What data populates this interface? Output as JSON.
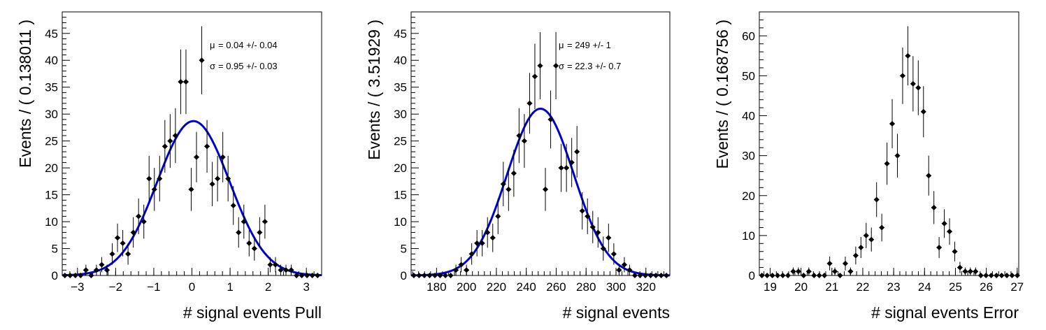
{
  "chart_data": [
    {
      "type": "scatter",
      "xlabel": "# signal events Pull",
      "ylabel": "Events / ( 0.138011 )",
      "xlim": [
        -3.4,
        3.4
      ],
      "ylim": [
        0,
        49
      ],
      "xticks": [
        "−3",
        "−2",
        "−1",
        "0",
        "1",
        "2",
        "3"
      ],
      "xtick_values": [
        -3,
        -2,
        -1,
        0,
        1,
        2,
        3
      ],
      "yticks": [
        "0",
        "5",
        "10",
        "15",
        "20",
        "25",
        "30",
        "35",
        "40",
        "45"
      ],
      "bin_width": 0.138011,
      "series": [
        {
          "x0": -3.331,
          "values": [
            0,
            0,
            0,
            0,
            1,
            0,
            1,
            2,
            1,
            4,
            7,
            6,
            4,
            8,
            11,
            10,
            18,
            16,
            18,
            24,
            25,
            26,
            36,
            36,
            16,
            22,
            40,
            24,
            17,
            18,
            22,
            18,
            13,
            8,
            10,
            6,
            5,
            8,
            10,
            2,
            2,
            1,
            1,
            1,
            0,
            0,
            0,
            0,
            0,
            0
          ]
        }
      ],
      "fit": {
        "type": "gaussian",
        "mean": 0.04,
        "sigma": 0.95,
        "amplitude": 28.7,
        "color": "#0000cc"
      },
      "stats": [
        {
          "symbol": "μ",
          "text": "=  0.04 +/- 0.04"
        },
        {
          "symbol": "σ",
          "text": "=  0.95 +/- 0.03"
        }
      ],
      "grid": false
    },
    {
      "type": "scatter",
      "xlabel": "# signal events",
      "ylabel": "Events / ( 3.51929 )",
      "xlim": [
        163,
        336
      ],
      "ylim": [
        0,
        49
      ],
      "xticks": [
        "180",
        "200",
        "220",
        "240",
        "260",
        "280",
        "300",
        "320"
      ],
      "xtick_values": [
        180,
        200,
        220,
        240,
        260,
        280,
        300,
        320
      ],
      "yticks": [
        "0",
        "5",
        "10",
        "15",
        "20",
        "25",
        "30",
        "35",
        "40",
        "45"
      ],
      "bin_width": 3.51929,
      "series": [
        {
          "x0": 164.8,
          "values": [
            0,
            0,
            0,
            0,
            0,
            0,
            0,
            0,
            1,
            2,
            1,
            4,
            6,
            6,
            8,
            7,
            11,
            17,
            16,
            19,
            26,
            25,
            32,
            37,
            39,
            16,
            29,
            39,
            20,
            20,
            21,
            23,
            12,
            11,
            9,
            8,
            5,
            7,
            4,
            1,
            2,
            1,
            0,
            0,
            0,
            0,
            0,
            0,
            0,
            0
          ]
        }
      ],
      "fit": {
        "type": "gaussian",
        "mean": 249.5,
        "sigma": 22.3,
        "amplitude": 31.0,
        "color": "#0000cc"
      },
      "stats": [
        {
          "symbol": "μ",
          "text": "=  249 +/- 1"
        },
        {
          "symbol": "σ",
          "text": "=  22.3 +/- 0.7"
        }
      ],
      "grid": false
    },
    {
      "type": "scatter",
      "xlabel": "# signal events Error",
      "ylabel": "Events / ( 0.168756 )",
      "xlim": [
        18.65,
        27.05
      ],
      "ylim": [
        0,
        66
      ],
      "xticks": [
        "19",
        "20",
        "21",
        "22",
        "23",
        "24",
        "25",
        "26",
        "27"
      ],
      "xtick_values": [
        19,
        20,
        21,
        22,
        23,
        24,
        25,
        26,
        27
      ],
      "yticks": [
        "0",
        "10",
        "20",
        "30",
        "40",
        "50",
        "60"
      ],
      "bin_width": 0.168756,
      "series": [
        {
          "x0": 18.734,
          "values": [
            0,
            0,
            0,
            0,
            0,
            0,
            1,
            1,
            0,
            1,
            0,
            0,
            0,
            3,
            1,
            0,
            3,
            1,
            5,
            7,
            10,
            9,
            19,
            12,
            28,
            38,
            30,
            50,
            55,
            48,
            47,
            41,
            25,
            17,
            7,
            13,
            11,
            6,
            2,
            1,
            1,
            1,
            0,
            0,
            0,
            0,
            0,
            0,
            0,
            0
          ]
        }
      ],
      "grid": false
    }
  ]
}
